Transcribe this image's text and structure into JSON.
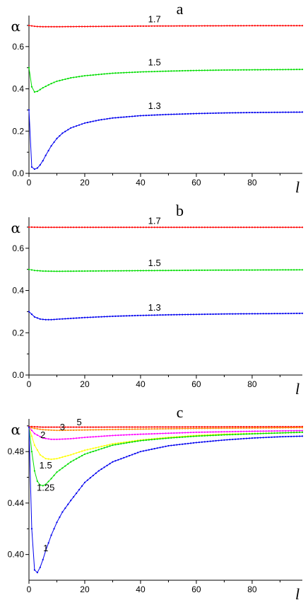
{
  "chart_data": [
    {
      "type": "line",
      "panel_label": "a",
      "ylabel": "α",
      "xlabel": "l",
      "xlim": [
        0,
        98
      ],
      "ylim": [
        0.0,
        0.72
      ],
      "x_ticks": [
        0,
        20,
        40,
        60,
        80
      ],
      "x_tick_labels": [
        "0",
        "20",
        "40",
        "60",
        "80"
      ],
      "y_ticks": [
        0.0,
        0.2,
        0.4,
        0.6
      ],
      "y_tick_labels": [
        "0.0",
        "0.2",
        "0.4",
        "0.6"
      ],
      "grid": false,
      "series": [
        {
          "name": "1.7",
          "color": "#ff0000",
          "x": [
            0,
            1,
            2,
            3,
            5,
            10,
            20,
            40,
            60,
            80,
            98
          ],
          "y": [
            0.7,
            0.698,
            0.696,
            0.695,
            0.694,
            0.694,
            0.695,
            0.697,
            0.698,
            0.699,
            0.699
          ],
          "label_x": 45,
          "label_y": 0.715
        },
        {
          "name": "1.5",
          "color": "#00dd00",
          "x": [
            0,
            1,
            2,
            3,
            5,
            8,
            10,
            15,
            20,
            30,
            40,
            50,
            60,
            70,
            80,
            90,
            98
          ],
          "y": [
            0.5,
            0.41,
            0.385,
            0.388,
            0.405,
            0.425,
            0.436,
            0.452,
            0.462,
            0.474,
            0.48,
            0.484,
            0.487,
            0.489,
            0.49,
            0.491,
            0.492
          ],
          "label_x": 45,
          "label_y": 0.51
        },
        {
          "name": "1.3",
          "color": "#0000ee",
          "x": [
            0,
            0.5,
            1,
            2,
            3,
            4,
            5,
            6,
            8,
            10,
            12,
            15,
            20,
            25,
            30,
            40,
            50,
            60,
            70,
            80,
            90,
            98
          ],
          "y": [
            0.3,
            0.15,
            0.03,
            0.02,
            0.025,
            0.04,
            0.06,
            0.085,
            0.13,
            0.165,
            0.19,
            0.215,
            0.238,
            0.252,
            0.262,
            0.273,
            0.279,
            0.283,
            0.286,
            0.288,
            0.289,
            0.29
          ],
          "label_x": 45,
          "label_y": 0.305
        }
      ]
    },
    {
      "type": "line",
      "panel_label": "b",
      "ylabel": "α",
      "xlabel": "l",
      "xlim": [
        0,
        98
      ],
      "ylim": [
        0.0,
        0.72
      ],
      "x_ticks": [
        0,
        20,
        40,
        60,
        80
      ],
      "x_tick_labels": [
        "0",
        "20",
        "40",
        "60",
        "80"
      ],
      "y_ticks": [
        0.0,
        0.2,
        0.4,
        0.6
      ],
      "y_tick_labels": [
        "0.0",
        "0.2",
        "0.4",
        "0.6"
      ],
      "grid": false,
      "series": [
        {
          "name": "1.7",
          "color": "#ff0000",
          "x": [
            0,
            5,
            20,
            40,
            60,
            80,
            98
          ],
          "y": [
            0.7,
            0.699,
            0.699,
            0.699,
            0.699,
            0.699,
            0.699
          ],
          "label_x": 45,
          "label_y": 0.715
        },
        {
          "name": "1.5",
          "color": "#00dd00",
          "x": [
            0,
            2,
            5,
            10,
            20,
            40,
            60,
            80,
            98
          ],
          "y": [
            0.5,
            0.495,
            0.492,
            0.491,
            0.492,
            0.494,
            0.496,
            0.497,
            0.498
          ],
          "label_x": 45,
          "label_y": 0.515
        },
        {
          "name": "1.3",
          "color": "#0000ee",
          "x": [
            0,
            2,
            4,
            6,
            8,
            10,
            15,
            20,
            30,
            40,
            50,
            60,
            70,
            80,
            90,
            98
          ],
          "y": [
            0.3,
            0.275,
            0.265,
            0.262,
            0.262,
            0.264,
            0.268,
            0.272,
            0.278,
            0.282,
            0.285,
            0.287,
            0.289,
            0.29,
            0.291,
            0.292
          ],
          "label_x": 45,
          "label_y": 0.305
        }
      ]
    },
    {
      "type": "line",
      "panel_label": "c",
      "ylabel": "α",
      "xlabel": "l",
      "xlim": [
        0,
        98
      ],
      "ylim": [
        0.38,
        0.501
      ],
      "x_ticks": [
        0,
        20,
        40,
        60,
        80
      ],
      "x_tick_labels": [
        "0",
        "20",
        "40",
        "60",
        "80"
      ],
      "y_ticks": [
        0.4,
        0.44,
        0.48
      ],
      "y_tick_labels": [
        "0.40",
        "0.44",
        "0.48"
      ],
      "grid": false,
      "series": [
        {
          "name": "5",
          "color": "#ff0000",
          "x": [
            0,
            5,
            20,
            40,
            60,
            80,
            98
          ],
          "y": [
            0.4995,
            0.499,
            0.499,
            0.4991,
            0.4992,
            0.4993,
            0.4994
          ],
          "label_x": 18,
          "label_y": 0.5005
        },
        {
          "name": "3",
          "color": "#ff8800",
          "x": [
            0,
            2,
            5,
            10,
            20,
            40,
            60,
            80,
            98
          ],
          "y": [
            0.499,
            0.498,
            0.497,
            0.4965,
            0.4968,
            0.4975,
            0.498,
            0.4983,
            0.4986
          ],
          "label_x": 12,
          "label_y": 0.4965
        },
        {
          "name": "2",
          "color": "#ff00ff",
          "x": [
            0,
            2,
            5,
            8,
            10,
            15,
            20,
            30,
            40,
            60,
            80,
            98
          ],
          "y": [
            0.499,
            0.494,
            0.4905,
            0.4895,
            0.4895,
            0.49,
            0.491,
            0.4925,
            0.4935,
            0.495,
            0.4958,
            0.4963
          ],
          "label_x": 5,
          "label_y": 0.4905
        },
        {
          "name": "1.5",
          "color": "#ffff00",
          "x": [
            0,
            2,
            4,
            6,
            8,
            10,
            15,
            20,
            30,
            40,
            50,
            60,
            70,
            80,
            90,
            98
          ],
          "y": [
            0.499,
            0.485,
            0.4775,
            0.4745,
            0.474,
            0.4745,
            0.4775,
            0.481,
            0.486,
            0.489,
            0.491,
            0.4925,
            0.4935,
            0.494,
            0.4945,
            0.495
          ],
          "label_x": 6,
          "label_y": 0.467
        },
        {
          "name": "1.25",
          "color": "#00dd00",
          "x": [
            0,
            1,
            2,
            3,
            4,
            5,
            6,
            8,
            10,
            15,
            20,
            30,
            40,
            50,
            60,
            70,
            80,
            90,
            98
          ],
          "y": [
            0.499,
            0.48,
            0.465,
            0.457,
            0.454,
            0.4535,
            0.4545,
            0.459,
            0.464,
            0.472,
            0.478,
            0.485,
            0.4885,
            0.4905,
            0.492,
            0.493,
            0.4938,
            0.4945,
            0.495
          ],
          "label_x": 6,
          "label_y": 0.4495
        },
        {
          "name": "1",
          "color": "#0000ee",
          "x": [
            0,
            0.5,
            1,
            2,
            3,
            4,
            5,
            6,
            8,
            10,
            12,
            15,
            20,
            25,
            30,
            40,
            50,
            60,
            70,
            80,
            90,
            98
          ],
          "y": [
            0.499,
            0.46,
            0.42,
            0.388,
            0.386,
            0.39,
            0.396,
            0.403,
            0.415,
            0.425,
            0.433,
            0.442,
            0.456,
            0.465,
            0.472,
            0.48,
            0.4845,
            0.487,
            0.489,
            0.4905,
            0.4915,
            0.492
          ],
          "label_x": 6,
          "label_y": 0.4025
        }
      ]
    }
  ]
}
